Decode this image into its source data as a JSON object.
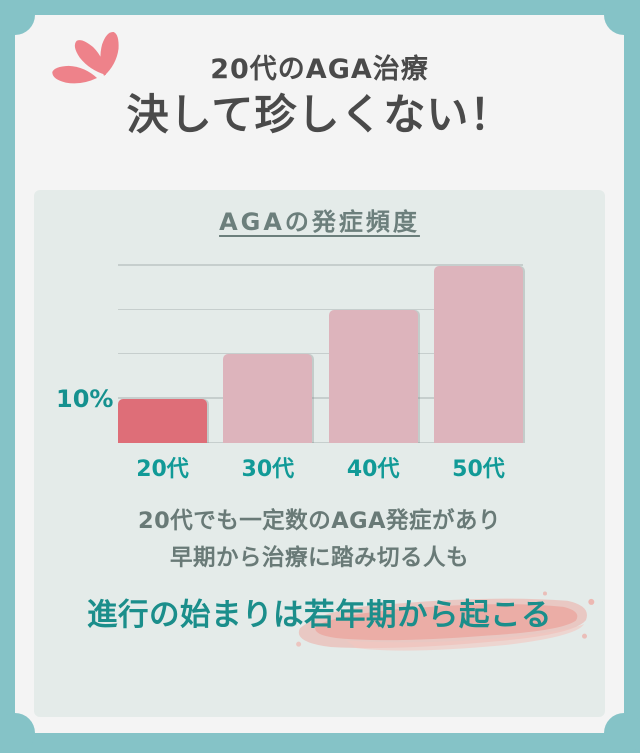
{
  "header": {
    "title_line1": "20代のAGA治療",
    "title_line2": "決して珍しくない！"
  },
  "chart_data": {
    "type": "bar",
    "title": "AGAの発症頻度",
    "categories": [
      "20代",
      "30代",
      "40代",
      "50代"
    ],
    "values": [
      10,
      20,
      30,
      40
    ],
    "unit": "%",
    "xlabel": "",
    "ylabel": "",
    "ylim": [
      0,
      43
    ],
    "gridlines_at": [
      0,
      10,
      20,
      30,
      40
    ],
    "y_tick_labels": [
      "10%"
    ],
    "grid": "on",
    "legend": "none",
    "highlight_category": "20代",
    "bar_color_highlight": "#de6e78",
    "bar_color_default": "#ddb4bc"
  },
  "footer": {
    "body_line1": "20代でも一定数のAGA発症があり",
    "body_line2": "早期から治療に踏み切る人も",
    "headline": "進行の始まりは若年期から起こる"
  },
  "colors": {
    "frame_teal": "#85c3c7",
    "card_bg": "#f4f4f4",
    "panel_bg": "#e4ebe9",
    "title_dark": "#4a4a4a",
    "chart_title_gray": "#6c7f7c",
    "teal_text": "#15918f",
    "body_gray": "#697a77",
    "petal_pink": "#ee828a",
    "brush_pink": "#edaba4",
    "gridline_gray": "#c6cecd"
  }
}
